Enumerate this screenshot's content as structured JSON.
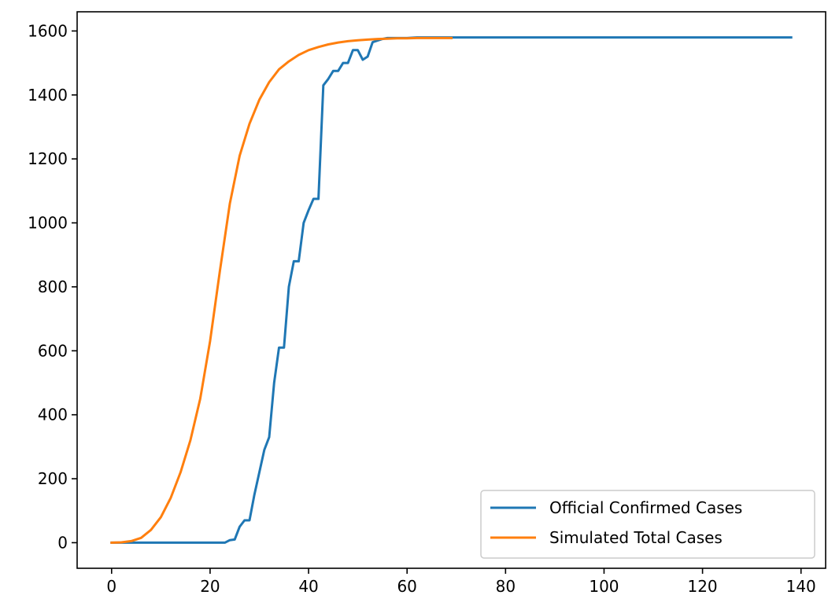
{
  "chart_data": {
    "type": "line",
    "title": "",
    "xlabel": "",
    "ylabel": "",
    "xlim": [
      -7,
      145
    ],
    "ylim": [
      -80,
      1660
    ],
    "xticks": [
      0,
      20,
      40,
      60,
      80,
      100,
      120,
      140
    ],
    "yticks": [
      0,
      200,
      400,
      600,
      800,
      1000,
      1200,
      1400,
      1600
    ],
    "grid": false,
    "legend": "bottom-right",
    "series": [
      {
        "name": "Official Confirmed Cases",
        "color": "#1f77b4",
        "x": [
          0,
          5,
          10,
          15,
          20,
          23,
          24,
          25,
          26,
          27,
          28,
          29,
          30,
          31,
          32,
          33,
          34,
          35,
          36,
          37,
          38,
          39,
          40,
          41,
          42,
          43,
          44,
          45,
          46,
          47,
          48,
          49,
          50,
          51,
          52,
          53,
          54,
          55,
          56,
          58,
          60,
          62,
          65,
          70,
          80,
          90,
          100,
          110,
          120,
          130,
          138
        ],
        "y": [
          0,
          0,
          0,
          0,
          0,
          0,
          8,
          10,
          50,
          70,
          70,
          150,
          220,
          290,
          330,
          500,
          610,
          610,
          800,
          880,
          880,
          1000,
          1040,
          1075,
          1075,
          1430,
          1450,
          1475,
          1475,
          1500,
          1500,
          1540,
          1540,
          1510,
          1520,
          1565,
          1570,
          1575,
          1578,
          1578,
          1578,
          1580,
          1580,
          1580,
          1580,
          1580,
          1580,
          1580,
          1580,
          1580,
          1580
        ]
      },
      {
        "name": "Simulated Total Cases",
        "color": "#ff7f0e",
        "x": [
          0,
          2,
          4,
          6,
          8,
          10,
          12,
          14,
          16,
          18,
          20,
          22,
          24,
          26,
          28,
          30,
          32,
          34,
          36,
          38,
          40,
          42,
          44,
          46,
          48,
          50,
          52,
          54,
          56,
          58,
          60,
          62,
          64,
          66,
          69
        ],
        "y": [
          0,
          1,
          5,
          15,
          40,
          80,
          140,
          220,
          320,
          450,
          630,
          850,
          1060,
          1210,
          1310,
          1385,
          1440,
          1480,
          1505,
          1525,
          1540,
          1550,
          1558,
          1564,
          1568,
          1571,
          1573,
          1575,
          1576,
          1577,
          1577,
          1578,
          1578,
          1578,
          1578
        ]
      }
    ]
  }
}
